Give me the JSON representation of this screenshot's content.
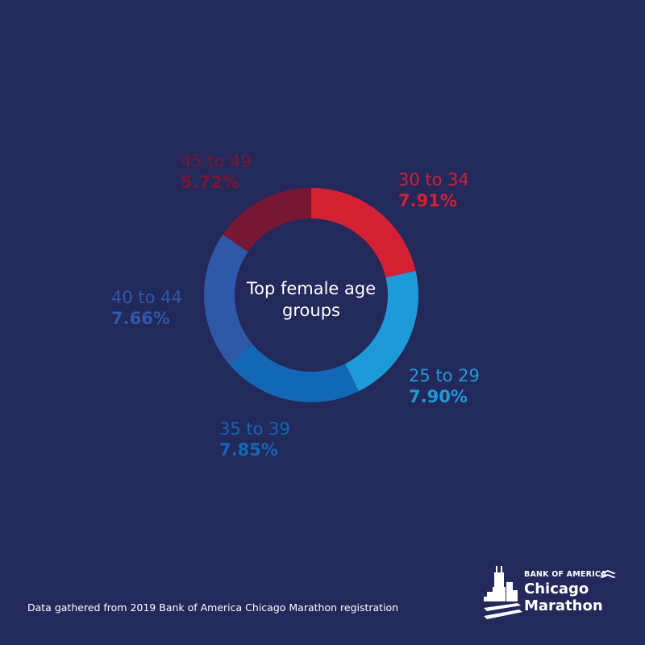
{
  "chart_data": {
    "type": "donut",
    "title": "Top female age groups",
    "slices": [
      {
        "label": "30 to 34",
        "value_text": "7.91%",
        "value": 7.91,
        "color": "#d42033"
      },
      {
        "label": "25 to 29",
        "value_text": "7.90%",
        "value": 7.9,
        "color": "#1f9ad8"
      },
      {
        "label": "35 to 39",
        "value_text": "7.85%",
        "value": 7.85,
        "color": "#1268b5"
      },
      {
        "label": "40 to 44",
        "value_text": "7.66%",
        "value": 7.66,
        "color": "#2f59a8"
      },
      {
        "label": "45 to 49",
        "value_text": "5.72%",
        "value": 5.72,
        "color": "#761735"
      }
    ]
  },
  "footer": {
    "source": "Data gathered from 2019 Bank of America Chicago Marathon registration"
  },
  "logo": {
    "sponsor": "BANK OF AMERICA",
    "line1": "Chicago",
    "line2": "Marathon",
    "color": "#ffffff"
  },
  "colors": {
    "background": "#23295b",
    "center_text": "#ffffff"
  }
}
